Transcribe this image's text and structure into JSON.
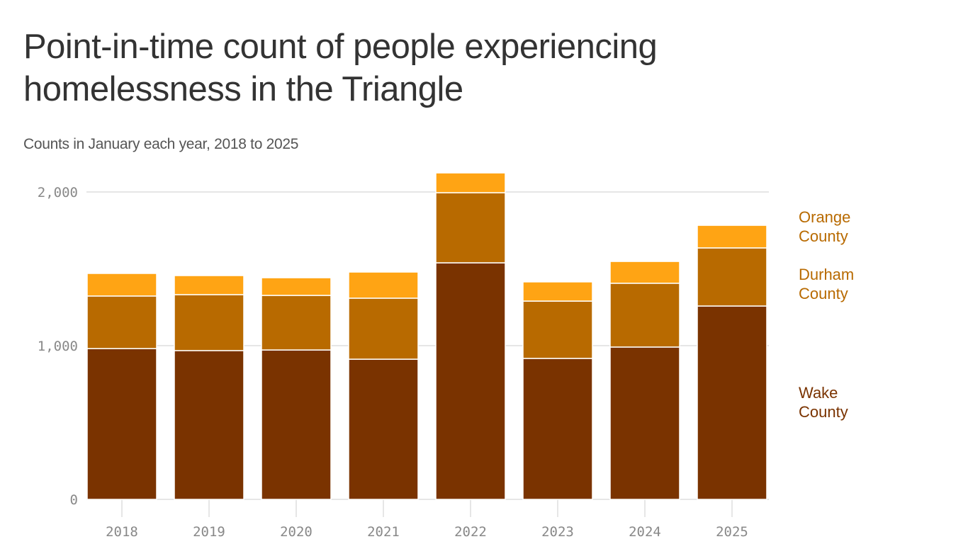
{
  "chart_data": {
    "type": "bar",
    "stacked": true,
    "title": "Point-in-time count of people experiencing homelessness in the Triangle",
    "subtitle": "Counts in January each year, 2018 to 2025",
    "xlabel": "",
    "ylabel": "",
    "categories": [
      "2018",
      "2019",
      "2020",
      "2021",
      "2022",
      "2023",
      "2024",
      "2025"
    ],
    "ylim": [
      0,
      2150
    ],
    "yticks": [
      0,
      1000,
      2000
    ],
    "ytick_labels": [
      "0",
      "1,000",
      "2,000"
    ],
    "grid": true,
    "legend_placement": "right, direct labels",
    "series": [
      {
        "name": "Wake County",
        "color": "#7A3300",
        "label_color": "#7A3300",
        "values": [
          981,
          968,
          972,
          912,
          1539,
          917,
          991,
          1258
        ]
      },
      {
        "name": "Durham County",
        "color": "#B86A00",
        "label_color": "#B86A00",
        "values": [
          342,
          364,
          355,
          397,
          456,
          373,
          415,
          378
        ]
      },
      {
        "name": "Orange County",
        "color": "#FFA414",
        "label_color": "#B86A00",
        "values": [
          147,
          124,
          115,
          170,
          129,
          125,
          142,
          147
        ]
      }
    ]
  }
}
